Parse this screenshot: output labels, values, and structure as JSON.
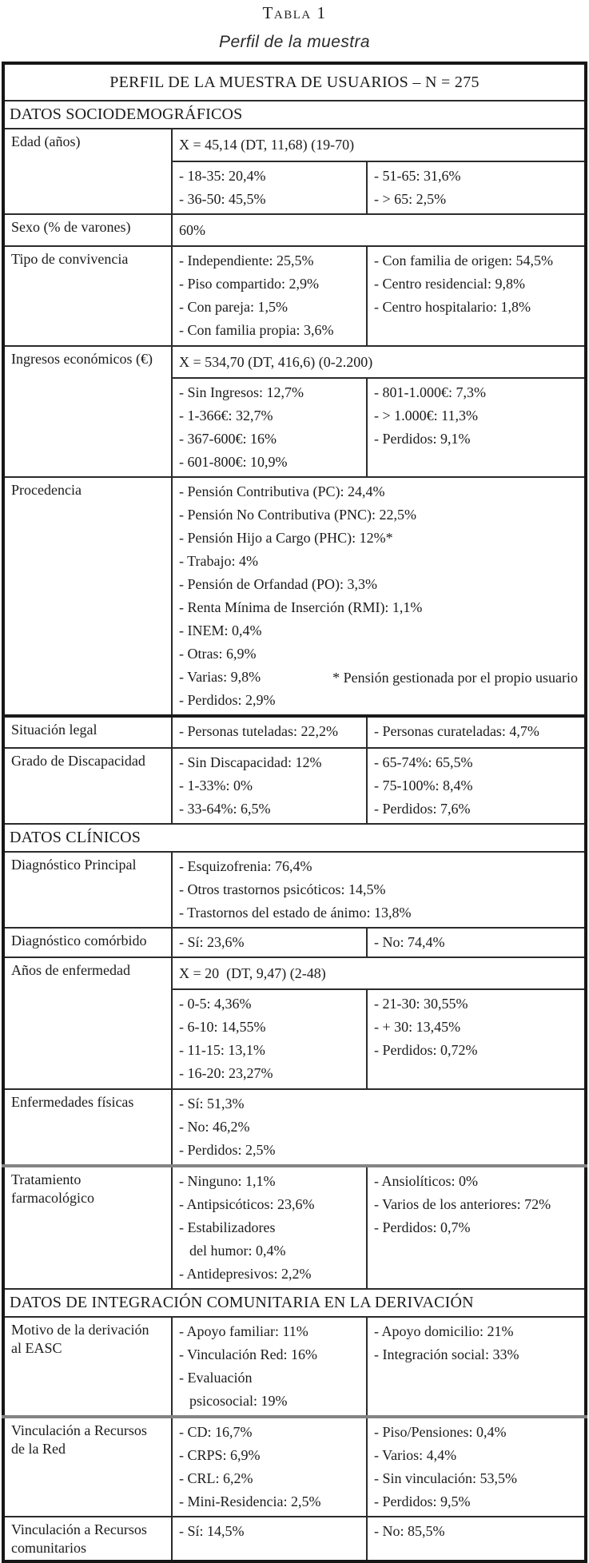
{
  "title": {
    "label": "Tabla 1",
    "caption": "Perfil de la muestra"
  },
  "table": {
    "header": "PERFIL DE LA MUESTRA DE USUARIOS – N = 275",
    "sections": {
      "sociodemograficos": "DATOS SOCIODEMOGRÁFICOS",
      "clinicos": "DATOS CLÍNICOS",
      "integracion": "DATOS DE INTEGRACIÓN COMUNITARIA EN LA DERIVACIÓN"
    },
    "rows": {
      "edad": {
        "label": "Edad (años)",
        "stat": "X = 45,14 (DT, 11,68) (19-70)",
        "left": [
          "- 18-35: 20,4%",
          "- 36-50: 45,5%"
        ],
        "right": [
          "- 51-65: 31,6%",
          "- > 65: 2,5%"
        ]
      },
      "sexo": {
        "label": "Sexo (% de varones)",
        "value": "60%"
      },
      "convivencia": {
        "label": "Tipo de convivencia",
        "left": [
          "- Independiente: 25,5%",
          "- Piso compartido: 2,9%",
          "- Con pareja: 1,5%",
          "- Con familia propia: 3,6%"
        ],
        "right": [
          "- Con familia de origen: 54,5%",
          "- Centro residencial: 9,8%",
          "- Centro hospitalario: 1,8%"
        ]
      },
      "ingresos": {
        "label": "Ingresos económicos (€)",
        "stat": "X = 534,70 (DT, 416,6) (0-2.200)",
        "left": [
          "- Sin Ingresos: 12,7%",
          "- 1-366€: 32,7%",
          "- 367-600€: 16%",
          "- 601-800€: 10,9%"
        ],
        "right": [
          "- 801-1.000€: 7,3%",
          "- > 1.000€: 11,3%",
          "- Perdidos: 9,1%"
        ]
      },
      "procedencia": {
        "label": "Procedencia",
        "items": [
          "- Pensión Contributiva (PC): 24,4%",
          "- Pensión No Contributiva (PNC): 22,5%",
          "- Pensión Hijo a Cargo (PHC): 12%*",
          "- Trabajo: 4%",
          "- Pensión de Orfandad (PO): 3,3%",
          "- Renta Mínima de Inserción (RMI): 1,1%",
          "- INEM: 0,4%",
          "- Otras: 6,9%",
          "- Varias: 9,8%",
          "- Perdidos: 2,9%"
        ],
        "note": "* Pensión gestionada por el propio usuario"
      },
      "situacion": {
        "label": "Situación legal",
        "left": [
          "- Personas tuteladas: 22,2%"
        ],
        "right": [
          "- Personas curateladas: 4,7%"
        ]
      },
      "discapacidad": {
        "label": "Grado de Discapacidad",
        "left": [
          "- Sin Discapacidad: 12%",
          "- 1-33%: 0%",
          "- 33-64%: 6,5%"
        ],
        "right": [
          "- 65-74%: 65,5%",
          "- 75-100%: 8,4%",
          "- Perdidos: 7,6%"
        ]
      },
      "diagnostico_principal": {
        "label": "Diagnóstico Principal",
        "items": [
          "- Esquizofrenia: 76,4%",
          "- Otros trastornos psicóticos: 14,5%",
          "- Trastornos del estado de ánimo: 13,8%"
        ]
      },
      "diagnostico_comorbido": {
        "label": "Diagnóstico comórbido",
        "left": [
          "- Sí: 23,6%"
        ],
        "right": [
          "- No: 74,4%"
        ]
      },
      "anos_enfermedad": {
        "label": "Años de enfermedad",
        "stat": "X = 20  (DT, 9,47) (2-48)",
        "left": [
          "- 0-5: 4,36%",
          "- 6-10: 14,55%",
          "- 11-15: 13,1%",
          "- 16-20: 23,27%"
        ],
        "right": [
          "- 21-30: 30,55%",
          "- + 30: 13,45%",
          "- Perdidos: 0,72%"
        ]
      },
      "enfermedades_fisicas": {
        "label": "Enfermedades físicas",
        "items": [
          "- Sí: 51,3%",
          "- No: 46,2%",
          "- Perdidos: 2,5%"
        ]
      },
      "tratamiento": {
        "label": "Tratamiento\nfarmacológico",
        "left": [
          "- Ninguno: 1,1%",
          "- Antipsicóticos: 23,6%",
          "- Estabilizadores\ndel humor: 0,4%",
          "- Antidepresivos: 2,2%"
        ],
        "right": [
          "- Ansiolíticos: 0%",
          "- Varios de los anteriores: 72%",
          "- Perdidos: 0,7%"
        ]
      },
      "motivo_derivacion": {
        "label": "Motivo de la derivación\nal EASC",
        "left": [
          "- Apoyo familiar: 11%",
          "- Vinculación Red: 16%",
          "- Evaluación\npsicosocial: 19%"
        ],
        "right": [
          "- Apoyo domicilio: 21%",
          "- Integración social: 33%"
        ]
      },
      "vinculacion_red": {
        "label": "Vinculación a Recursos\nde la Red",
        "left": [
          "- CD: 16,7%",
          "- CRPS: 6,9%",
          "- CRL: 6,2%",
          "- Mini-Residencia: 2,5%"
        ],
        "right": [
          "- Piso/Pensiones: 0,4%",
          "- Varios: 4,4%",
          "- Sin vinculación: 53,5%",
          "- Perdidos: 9,5%"
        ]
      },
      "vinculacion_comunitarios": {
        "label": "Vinculación a Recursos\ncomunitarios",
        "left": [
          "- Sí: 14,5%"
        ],
        "right": [
          "- No: 85,5%"
        ]
      }
    }
  }
}
